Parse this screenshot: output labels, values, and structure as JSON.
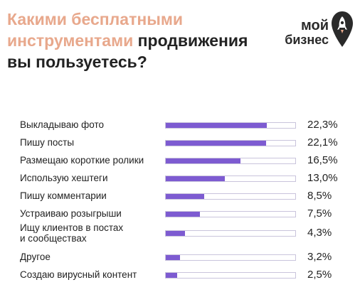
{
  "header": {
    "title_part1": "Какими бесплатными",
    "title_part2": "инструментами",
    "title_part3": " продвижения",
    "title_part4": "вы пользуетесь?"
  },
  "logo": {
    "line1": "мой",
    "line2": "бизнес",
    "icon": "rocket-pin-icon"
  },
  "colors": {
    "accent_title": "#e8a88c",
    "bar_fill": "#7d5bd1",
    "bar_border": "#c9c4dc"
  },
  "chart_data": {
    "type": "bar",
    "orientation": "horizontal",
    "categories": [
      "Выкладываю фото",
      "Пишу посты",
      "Размещаю короткие ролики",
      "Использую хештеги",
      "Пишу комментарии",
      "Устраиваю розыгрыши",
      "Ищу клиентов в постах\nи сообществах",
      "Другое",
      "Создаю вирусный контент"
    ],
    "values": [
      22.3,
      22.1,
      16.5,
      13.0,
      8.5,
      7.5,
      4.3,
      3.2,
      2.5
    ],
    "value_labels": [
      "22,3%",
      "22,1%",
      "16,5%",
      "13,0%",
      "8,5%",
      "7,5%",
      "4,3%",
      "3,2%",
      "2,5%"
    ],
    "xlim": [
      0,
      28.8
    ],
    "grid": false
  }
}
